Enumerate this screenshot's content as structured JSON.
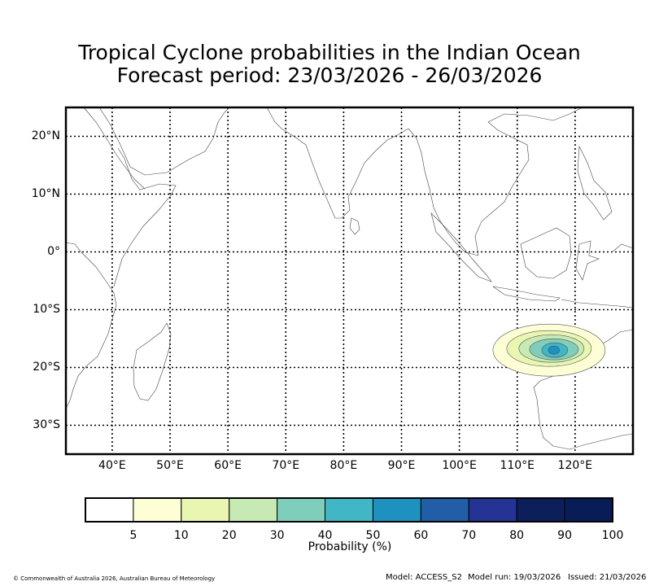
{
  "title": {
    "line1": "Tropical Cyclone probabilities in the Indian Ocean",
    "line2": "Forecast period: 23/03/2026 - 26/03/2026"
  },
  "map": {
    "lat_labels": [
      "20°N",
      "10°N",
      "0°",
      "10°S",
      "20°S",
      "30°S"
    ],
    "lat_values": [
      20,
      10,
      0,
      -10,
      -20,
      -30
    ],
    "lon_labels": [
      "40°E",
      "50°E",
      "60°E",
      "70°E",
      "80°E",
      "90°E",
      "100°E",
      "110°E",
      "120°E"
    ],
    "lon_values": [
      40,
      50,
      60,
      70,
      80,
      90,
      100,
      110,
      120
    ],
    "lat_range": [
      -35,
      25
    ],
    "lon_range": [
      32,
      130
    ],
    "probability_feature": {
      "center_lon": 115.5,
      "center_lat": -17,
      "levels": [
        5,
        10,
        20,
        30,
        40,
        50
      ]
    }
  },
  "colorbar": {
    "title": "Probability (%)",
    "ticks": [
      "5",
      "10",
      "20",
      "30",
      "40",
      "50",
      "60",
      "70",
      "80",
      "90",
      "100"
    ],
    "colors": [
      "#ffffff",
      "#fefed6",
      "#e8f6b2",
      "#c7e9b4",
      "#7fcdbb",
      "#41b6c4",
      "#1d91c0",
      "#225ea8",
      "#253494",
      "#0c1f5a",
      "#081d58"
    ]
  },
  "footer": {
    "copyright": "© Commonwealth of Australia 2026, Australian Bureau of Meteorology",
    "model": "Model: ACCESS_S2",
    "model_run": "Model run: 19/03/2026",
    "issued": "Issued: 21/03/2026"
  }
}
